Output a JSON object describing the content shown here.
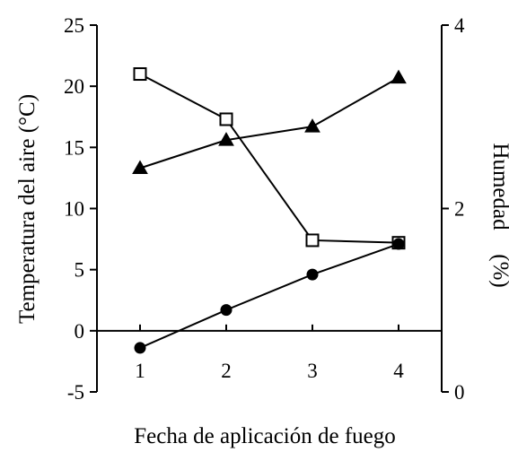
{
  "chart_data": {
    "type": "line",
    "xlabel": "Fecha de aplicación de fuego",
    "ylabel_left": "Temperatura del aire (°C)",
    "ylabel_right_main": "Humedad",
    "ylabel_right_unit": "(%)",
    "x": [
      1,
      2,
      3,
      4
    ],
    "x_tick_labels": [
      "1",
      "2",
      "3",
      "4"
    ],
    "xlim": [
      0.5,
      4.5
    ],
    "ylim_left": [
      -5,
      25
    ],
    "ylim_right": [
      0,
      4
    ],
    "yticks_left": [
      -5,
      0,
      5,
      10,
      15,
      20,
      25
    ],
    "ytick_labels_left": [
      "-5",
      "0",
      "5",
      "10",
      "15",
      "20",
      "25"
    ],
    "yticks_right": [
      0,
      2,
      4
    ],
    "ytick_labels_right": [
      "0",
      "2",
      "4"
    ],
    "grid": false,
    "series": [
      {
        "id": "open-square",
        "marker": "square-open",
        "axis": "left",
        "values": [
          21.0,
          17.3,
          7.4,
          7.2
        ]
      },
      {
        "id": "filled-triangle",
        "marker": "triangle-filled",
        "axis": "left",
        "values": [
          13.3,
          15.6,
          16.7,
          20.7
        ]
      },
      {
        "id": "filled-circle",
        "marker": "circle-filled",
        "axis": "left",
        "values": [
          -1.4,
          1.7,
          4.6,
          7.1
        ]
      }
    ],
    "colors": {
      "ink": "#000000",
      "background": "#ffffff"
    }
  }
}
